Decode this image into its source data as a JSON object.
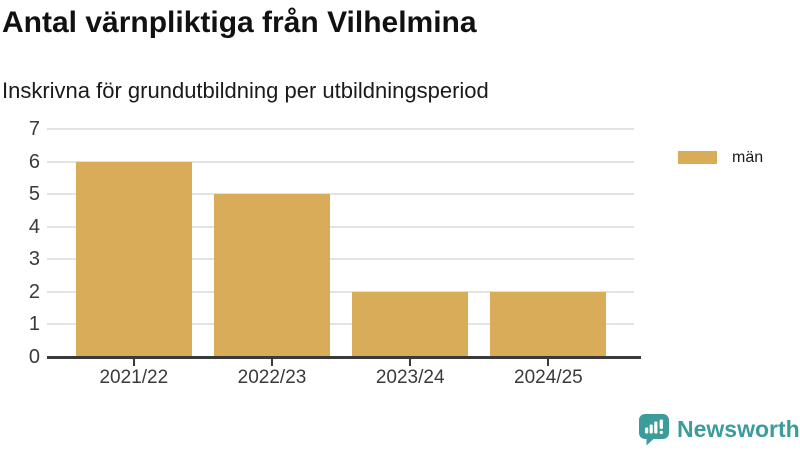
{
  "header": {
    "title": "Antal värnpliktiga från Vilhelmina",
    "subtitle": "Inskrivna för grundutbildning per utbildningsperiod"
  },
  "chart_data": {
    "type": "bar",
    "categories": [
      "2021/22",
      "2022/23",
      "2023/24",
      "2024/25"
    ],
    "series": [
      {
        "name": "män",
        "values": [
          6,
          5,
          2,
          2
        ],
        "color": "#D9AC5A"
      }
    ],
    "title": "Antal värnpliktiga från Vilhelmina",
    "subtitle": "Inskrivna för grundutbildning per utbildningsperiod",
    "xlabel": "",
    "ylabel": "",
    "ylim": [
      0,
      7
    ],
    "yticks": [
      0,
      1,
      2,
      3,
      4,
      5,
      6,
      7
    ],
    "grid": true,
    "legend_position": "right",
    "colors": {
      "bar": "#D9AC5A",
      "axis": "#3a3a3a",
      "gridline": "#e3e3e3",
      "tick_text": "#3a3a3a"
    }
  },
  "legend": {
    "items": [
      {
        "label": "män",
        "color": "#D9AC5A"
      }
    ]
  },
  "footer": {
    "brand": "Newsworthy",
    "brand_color": "#3B9C9B",
    "icon": "newsworthy-chart-bubble-icon"
  }
}
